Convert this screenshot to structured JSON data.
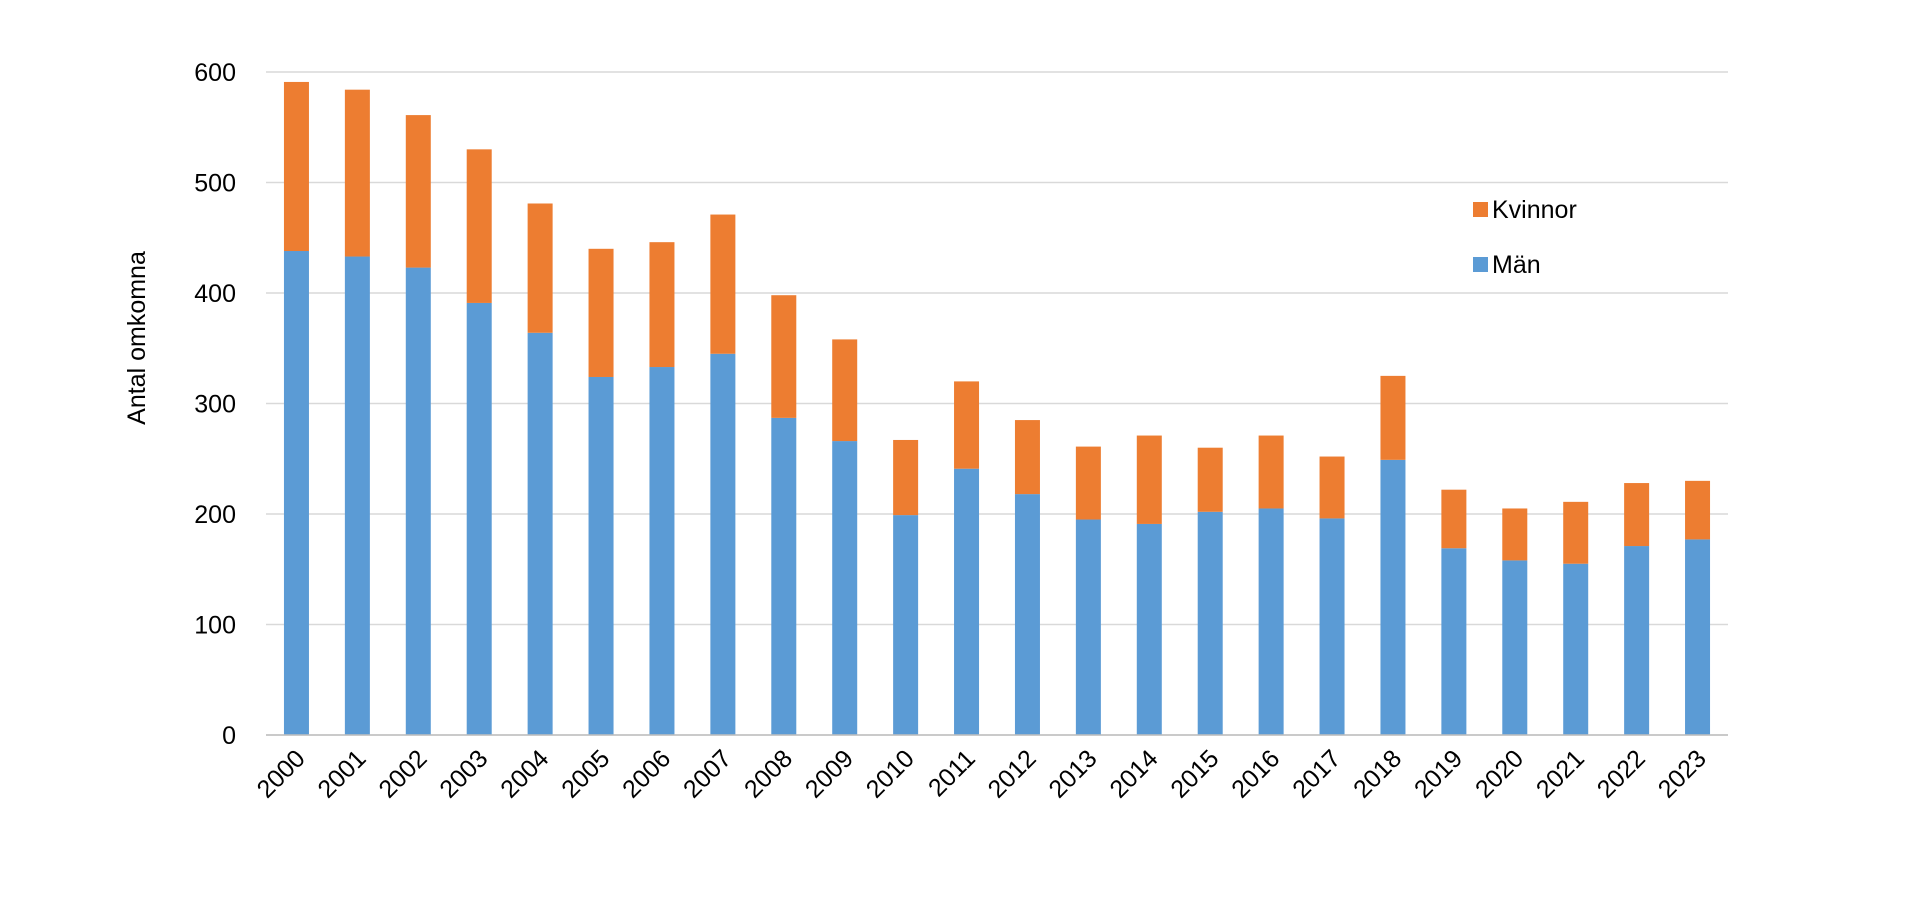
{
  "chart_data": {
    "type": "bar",
    "stacked": true,
    "title": "",
    "xlabel": "",
    "ylabel": "Antal omkomna",
    "ylim": [
      0,
      600
    ],
    "yticks": [
      0,
      100,
      200,
      300,
      400,
      500,
      600
    ],
    "grid": true,
    "legend_position": "top-right",
    "categories": [
      "2000",
      "2001",
      "2002",
      "2003",
      "2004",
      "2005",
      "2006",
      "2007",
      "2008",
      "2009",
      "2010",
      "2011",
      "2012",
      "2013",
      "2014",
      "2015",
      "2016",
      "2017",
      "2018",
      "2019",
      "2020",
      "2021",
      "2022",
      "2023"
    ],
    "series": [
      {
        "name": "Män",
        "color": "#5B9BD5",
        "values": [
          438,
          433,
          423,
          391,
          364,
          324,
          333,
          345,
          287,
          266,
          199,
          241,
          218,
          195,
          191,
          202,
          205,
          196,
          249,
          169,
          158,
          155,
          171,
          177
        ]
      },
      {
        "name": "Kvinnor",
        "color": "#ED7D31",
        "values": [
          153,
          151,
          138,
          139,
          117,
          116,
          113,
          126,
          111,
          92,
          68,
          79,
          67,
          66,
          80,
          58,
          66,
          56,
          76,
          53,
          47,
          56,
          57,
          53
        ]
      }
    ],
    "legend_order": [
      "Kvinnor",
      "Män"
    ]
  }
}
